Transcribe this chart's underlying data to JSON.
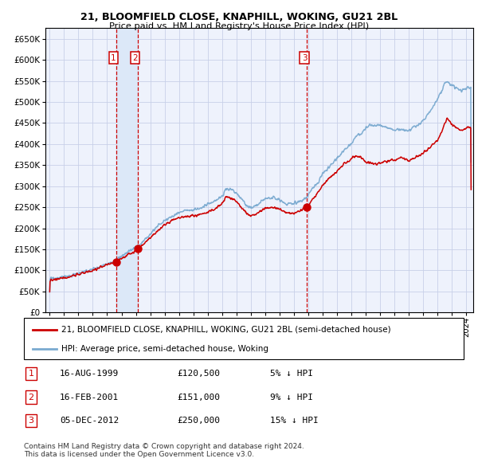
{
  "title": "21, BLOOMFIELD CLOSE, KNAPHILL, WOKING, GU21 2BL",
  "subtitle": "Price paid vs. HM Land Registry's House Price Index (HPI)",
  "legend_line1": "21, BLOOMFIELD CLOSE, KNAPHILL, WOKING, GU21 2BL (semi-detached house)",
  "legend_line2": "HPI: Average price, semi-detached house, Woking",
  "transactions": [
    {
      "num": 1,
      "date": "16-AUG-1999",
      "price": 120500,
      "pct": "5%",
      "dir": "↓"
    },
    {
      "num": 2,
      "date": "16-FEB-2001",
      "price": 151000,
      "pct": "9%",
      "dir": "↓"
    },
    {
      "num": 3,
      "date": "05-DEC-2012",
      "price": 250000,
      "pct": "15%",
      "dir": "↓"
    }
  ],
  "transaction_dates_decimal": [
    1999.625,
    2001.125,
    2012.917
  ],
  "dot_prices": [
    120500,
    151000,
    250000
  ],
  "vline_color": "#cc0000",
  "shade_color": "#dce8f8",
  "hpi_color": "#7aaad0",
  "price_color": "#cc0000",
  "dot_color": "#cc0000",
  "ylim": [
    0,
    675000
  ],
  "yticks": [
    0,
    50000,
    100000,
    150000,
    200000,
    250000,
    300000,
    350000,
    400000,
    450000,
    500000,
    550000,
    600000,
    650000
  ],
  "xlim_start": 1994.7,
  "xlim_end": 2024.5,
  "xticks": [
    1995,
    1996,
    1997,
    1998,
    1999,
    2000,
    2001,
    2002,
    2003,
    2004,
    2005,
    2006,
    2007,
    2008,
    2009,
    2010,
    2011,
    2012,
    2013,
    2014,
    2015,
    2016,
    2017,
    2018,
    2019,
    2020,
    2021,
    2022,
    2023,
    2024
  ],
  "grid_color": "#c8d0e8",
  "plot_bg": "#eef2fc",
  "footer": "Contains HM Land Registry data © Crown copyright and database right 2024.\nThis data is licensed under the Open Government Licence v3.0.",
  "hpi_anchors": [
    [
      1995.0,
      80000
    ],
    [
      1995.5,
      82000
    ],
    [
      1996.0,
      85000
    ],
    [
      1996.5,
      88000
    ],
    [
      1997.0,
      92000
    ],
    [
      1997.5,
      97000
    ],
    [
      1998.0,
      103000
    ],
    [
      1998.5,
      109000
    ],
    [
      1999.0,
      115000
    ],
    [
      1999.5,
      122000
    ],
    [
      2000.0,
      133000
    ],
    [
      2000.5,
      145000
    ],
    [
      2001.0,
      155000
    ],
    [
      2001.5,
      168000
    ],
    [
      2002.0,
      188000
    ],
    [
      2002.5,
      205000
    ],
    [
      2003.0,
      218000
    ],
    [
      2003.5,
      228000
    ],
    [
      2004.0,
      238000
    ],
    [
      2004.5,
      242000
    ],
    [
      2005.0,
      243000
    ],
    [
      2005.5,
      248000
    ],
    [
      2006.0,
      256000
    ],
    [
      2006.5,
      265000
    ],
    [
      2007.0,
      275000
    ],
    [
      2007.3,
      295000
    ],
    [
      2007.8,
      290000
    ],
    [
      2008.2,
      275000
    ],
    [
      2008.7,
      255000
    ],
    [
      2009.0,
      248000
    ],
    [
      2009.3,
      252000
    ],
    [
      2009.7,
      262000
    ],
    [
      2010.0,
      270000
    ],
    [
      2010.5,
      272000
    ],
    [
      2011.0,
      268000
    ],
    [
      2011.5,
      258000
    ],
    [
      2012.0,
      258000
    ],
    [
      2012.5,
      265000
    ],
    [
      2013.0,
      278000
    ],
    [
      2013.3,
      295000
    ],
    [
      2013.7,
      310000
    ],
    [
      2014.0,
      328000
    ],
    [
      2014.5,
      348000
    ],
    [
      2015.0,
      365000
    ],
    [
      2015.5,
      385000
    ],
    [
      2016.0,
      400000
    ],
    [
      2016.3,
      418000
    ],
    [
      2016.7,
      425000
    ],
    [
      2017.0,
      438000
    ],
    [
      2017.3,
      445000
    ],
    [
      2017.7,
      442000
    ],
    [
      2018.0,
      445000
    ],
    [
      2018.5,
      440000
    ],
    [
      2019.0,
      432000
    ],
    [
      2019.5,
      435000
    ],
    [
      2020.0,
      432000
    ],
    [
      2020.5,
      442000
    ],
    [
      2021.0,
      455000
    ],
    [
      2021.5,
      478000
    ],
    [
      2022.0,
      505000
    ],
    [
      2022.3,
      525000
    ],
    [
      2022.5,
      548000
    ],
    [
      2022.7,
      545000
    ],
    [
      2023.0,
      540000
    ],
    [
      2023.3,
      535000
    ],
    [
      2023.7,
      528000
    ],
    [
      2024.0,
      530000
    ],
    [
      2024.3,
      535000
    ]
  ],
  "price_anchors": [
    [
      1995.0,
      76000
    ],
    [
      1995.5,
      79000
    ],
    [
      1996.0,
      82000
    ],
    [
      1996.5,
      86000
    ],
    [
      1997.0,
      90000
    ],
    [
      1997.5,
      95000
    ],
    [
      1998.0,
      100000
    ],
    [
      1998.5,
      107000
    ],
    [
      1999.0,
      113000
    ],
    [
      1999.5,
      119000
    ],
    [
      1999.625,
      120500
    ],
    [
      2000.0,
      128000
    ],
    [
      2000.5,
      138000
    ],
    [
      2001.0,
      147000
    ],
    [
      2001.125,
      151000
    ],
    [
      2001.5,
      160000
    ],
    [
      2002.0,
      177000
    ],
    [
      2002.5,
      193000
    ],
    [
      2003.0,
      208000
    ],
    [
      2003.5,
      218000
    ],
    [
      2004.0,
      225000
    ],
    [
      2004.5,
      228000
    ],
    [
      2005.0,
      230000
    ],
    [
      2005.5,
      232000
    ],
    [
      2006.0,
      238000
    ],
    [
      2006.5,
      246000
    ],
    [
      2007.0,
      258000
    ],
    [
      2007.3,
      275000
    ],
    [
      2007.8,
      270000
    ],
    [
      2008.2,
      255000
    ],
    [
      2008.7,
      236000
    ],
    [
      2009.0,
      228000
    ],
    [
      2009.3,
      232000
    ],
    [
      2009.7,
      240000
    ],
    [
      2010.0,
      248000
    ],
    [
      2010.5,
      250000
    ],
    [
      2011.0,
      246000
    ],
    [
      2011.5,
      236000
    ],
    [
      2012.0,
      236000
    ],
    [
      2012.5,
      243000
    ],
    [
      2012.917,
      250000
    ],
    [
      2013.0,
      252000
    ],
    [
      2013.3,
      268000
    ],
    [
      2013.7,
      285000
    ],
    [
      2014.0,
      302000
    ],
    [
      2014.5,
      320000
    ],
    [
      2015.0,
      335000
    ],
    [
      2015.5,
      352000
    ],
    [
      2016.0,
      365000
    ],
    [
      2016.3,
      372000
    ],
    [
      2016.7,
      368000
    ],
    [
      2017.0,
      358000
    ],
    [
      2017.3,
      355000
    ],
    [
      2017.7,
      352000
    ],
    [
      2018.0,
      355000
    ],
    [
      2018.5,
      360000
    ],
    [
      2019.0,
      363000
    ],
    [
      2019.5,
      368000
    ],
    [
      2020.0,
      360000
    ],
    [
      2020.5,
      370000
    ],
    [
      2021.0,
      378000
    ],
    [
      2021.5,
      392000
    ],
    [
      2022.0,
      408000
    ],
    [
      2022.3,
      428000
    ],
    [
      2022.5,
      448000
    ],
    [
      2022.7,
      460000
    ],
    [
      2023.0,
      448000
    ],
    [
      2023.3,
      440000
    ],
    [
      2023.7,
      432000
    ],
    [
      2024.0,
      438000
    ],
    [
      2024.3,
      440000
    ]
  ]
}
